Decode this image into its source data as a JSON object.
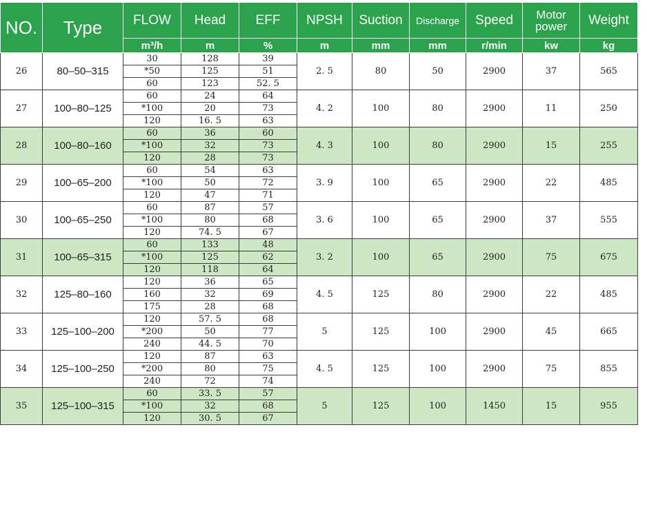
{
  "header": {
    "no": "NO.",
    "type": "Type",
    "flow": "FLOW",
    "head": "Head",
    "eff": "EFF",
    "npsh": "NPSH",
    "suction": "Suction",
    "discharge": "Discharge",
    "speed": "Speed",
    "motor_power": "Motor power",
    "weight": "Weight"
  },
  "units": {
    "flow": "m³/h",
    "head": "m",
    "eff": "%",
    "npsh": "m",
    "suction": "mm",
    "discharge": "mm",
    "speed": "r/min",
    "motor_power": "kw",
    "weight": "kg"
  },
  "colors": {
    "header_green": "#2ba24c",
    "highlight_row": "#cde6c4"
  },
  "rows": [
    {
      "no": "26",
      "type": "80–50–315",
      "highlight": false,
      "points": [
        {
          "flow": "30",
          "head": "128",
          "eff": "39"
        },
        {
          "flow": "*50",
          "head": "125",
          "eff": "51"
        },
        {
          "flow": "60",
          "head": "123",
          "eff": "52. 5"
        }
      ],
      "npsh": "2. 5",
      "suction": "80",
      "discharge": "50",
      "speed": "2900",
      "motor_power": "37",
      "weight": "565"
    },
    {
      "no": "27",
      "type": "100–80–125",
      "highlight": false,
      "points": [
        {
          "flow": "60",
          "head": "24",
          "eff": "64"
        },
        {
          "flow": "*100",
          "head": "20",
          "eff": "73"
        },
        {
          "flow": "120",
          "head": "16. 5",
          "eff": "63"
        }
      ],
      "npsh": "4. 2",
      "suction": "100",
      "discharge": "80",
      "speed": "2900",
      "motor_power": "11",
      "weight": "250"
    },
    {
      "no": "28",
      "type": "100–80–160",
      "highlight": true,
      "points": [
        {
          "flow": "60",
          "head": "36",
          "eff": "60"
        },
        {
          "flow": "*100",
          "head": "32",
          "eff": "73"
        },
        {
          "flow": "120",
          "head": "28",
          "eff": "73"
        }
      ],
      "npsh": "4. 3",
      "suction": "100",
      "discharge": "80",
      "speed": "2900",
      "motor_power": "15",
      "weight": "255"
    },
    {
      "no": "29",
      "type": "100–65–200",
      "highlight": false,
      "points": [
        {
          "flow": "60",
          "head": "54",
          "eff": "63"
        },
        {
          "flow": "*100",
          "head": "50",
          "eff": "72"
        },
        {
          "flow": "120",
          "head": "47",
          "eff": "71"
        }
      ],
      "npsh": "3. 9",
      "suction": "100",
      "discharge": "65",
      "speed": "2900",
      "motor_power": "22",
      "weight": "485"
    },
    {
      "no": "30",
      "type": "100–65–250",
      "highlight": false,
      "points": [
        {
          "flow": "60",
          "head": "87",
          "eff": "57"
        },
        {
          "flow": "*100",
          "head": "80",
          "eff": "68"
        },
        {
          "flow": "120",
          "head": "74. 5",
          "eff": "67"
        }
      ],
      "npsh": "3. 6",
      "suction": "100",
      "discharge": "65",
      "speed": "2900",
      "motor_power": "37",
      "weight": "555"
    },
    {
      "no": "31",
      "type": "100–65–315",
      "highlight": true,
      "points": [
        {
          "flow": "60",
          "head": "133",
          "eff": "48"
        },
        {
          "flow": "*100",
          "head": "125",
          "eff": "62"
        },
        {
          "flow": "120",
          "head": "118",
          "eff": "64"
        }
      ],
      "npsh": "3. 2",
      "suction": "100",
      "discharge": "65",
      "speed": "2900",
      "motor_power": "75",
      "weight": "675"
    },
    {
      "no": "32",
      "type": "125–80–160",
      "highlight": false,
      "points": [
        {
          "flow": "120",
          "head": "36",
          "eff": "65"
        },
        {
          "flow": "160",
          "head": "32",
          "eff": "69"
        },
        {
          "flow": "175",
          "head": "28",
          "eff": "68"
        }
      ],
      "npsh": "4. 5",
      "suction": "125",
      "discharge": "80",
      "speed": "2900",
      "motor_power": "22",
      "weight": "485"
    },
    {
      "no": "33",
      "type": "125–100–200",
      "highlight": false,
      "points": [
        {
          "flow": "120",
          "head": "57. 5",
          "eff": "68"
        },
        {
          "flow": "*200",
          "head": "50",
          "eff": "77"
        },
        {
          "flow": "240",
          "head": "44. 5",
          "eff": "70"
        }
      ],
      "npsh": "5",
      "suction": "125",
      "discharge": "100",
      "speed": "2900",
      "motor_power": "45",
      "weight": "665"
    },
    {
      "no": "34",
      "type": "125–100–250",
      "highlight": false,
      "points": [
        {
          "flow": "120",
          "head": "87",
          "eff": "63"
        },
        {
          "flow": "*200",
          "head": "80",
          "eff": "75"
        },
        {
          "flow": "240",
          "head": "72",
          "eff": "74"
        }
      ],
      "npsh": "4. 5",
      "suction": "125",
      "discharge": "100",
      "speed": "2900",
      "motor_power": "75",
      "weight": "855"
    },
    {
      "no": "35",
      "type": "125–100–315",
      "highlight": true,
      "points": [
        {
          "flow": "60",
          "head": "33. 5",
          "eff": "57"
        },
        {
          "flow": "*100",
          "head": "32",
          "eff": "68"
        },
        {
          "flow": "120",
          "head": "30. 5",
          "eff": "67"
        }
      ],
      "npsh": "5",
      "suction": "125",
      "discharge": "100",
      "speed": "1450",
      "motor_power": "15",
      "weight": "955"
    }
  ]
}
